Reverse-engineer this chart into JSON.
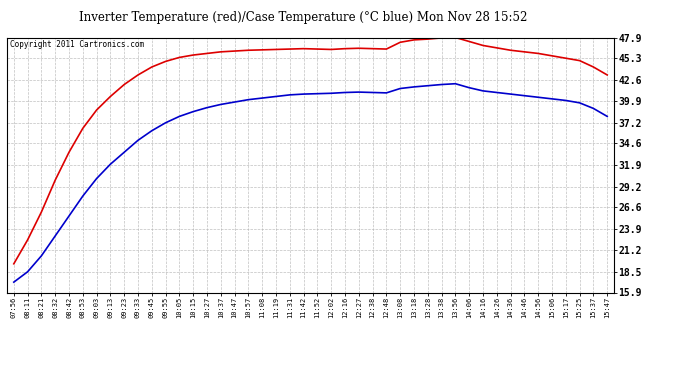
{
  "title": "Inverter Temperature (red)/Case Temperature (°C blue) Mon Nov 28 15:52",
  "copyright": "Copyright 2011 Cartronics.com",
  "background_color": "#ffffff",
  "plot_bg_color": "#ffffff",
  "grid_color": "#b0b0b0",
  "x_labels": [
    "07:56",
    "08:11",
    "08:21",
    "08:32",
    "08:42",
    "08:53",
    "09:03",
    "09:13",
    "09:23",
    "09:33",
    "09:45",
    "09:55",
    "10:05",
    "10:15",
    "10:27",
    "10:37",
    "10:47",
    "10:57",
    "11:08",
    "11:19",
    "11:31",
    "11:42",
    "11:52",
    "12:02",
    "12:16",
    "12:27",
    "12:38",
    "12:48",
    "13:08",
    "13:18",
    "13:28",
    "13:38",
    "13:56",
    "14:06",
    "14:16",
    "14:26",
    "14:36",
    "14:46",
    "14:56",
    "15:06",
    "15:17",
    "15:25",
    "15:37",
    "15:47"
  ],
  "y_ticks": [
    15.9,
    18.5,
    21.2,
    23.9,
    26.6,
    29.2,
    31.9,
    34.6,
    37.2,
    39.9,
    42.6,
    45.3,
    47.9
  ],
  "y_tick_labels": [
    "15.9",
    "18.5",
    "21.2",
    "23.9",
    "26.6",
    "29.2",
    "31.9",
    "34.6",
    "37.2",
    "39.9",
    "42.6",
    "45.3",
    "47.9"
  ],
  "ylim": [
    15.9,
    47.9
  ],
  "red_series": [
    19.5,
    22.5,
    26.0,
    30.0,
    33.5,
    36.5,
    38.8,
    40.5,
    42.0,
    43.2,
    44.2,
    44.9,
    45.4,
    45.7,
    45.9,
    46.1,
    46.2,
    46.3,
    46.35,
    46.4,
    46.45,
    46.5,
    46.45,
    46.4,
    46.5,
    46.55,
    46.5,
    46.45,
    47.3,
    47.6,
    47.7,
    47.85,
    47.9,
    47.4,
    46.9,
    46.6,
    46.3,
    46.1,
    45.9,
    45.6,
    45.3,
    45.0,
    44.2,
    43.2
  ],
  "blue_series": [
    17.2,
    18.5,
    20.5,
    23.0,
    25.5,
    28.0,
    30.2,
    32.0,
    33.5,
    35.0,
    36.2,
    37.2,
    38.0,
    38.6,
    39.1,
    39.5,
    39.8,
    40.1,
    40.3,
    40.5,
    40.7,
    40.8,
    40.85,
    40.9,
    41.0,
    41.05,
    41.0,
    40.95,
    41.5,
    41.7,
    41.85,
    42.0,
    42.1,
    41.6,
    41.2,
    41.0,
    40.8,
    40.6,
    40.4,
    40.2,
    40.0,
    39.7,
    39.0,
    38.0
  ],
  "red_color": "#dd0000",
  "blue_color": "#0000cc",
  "line_width": 1.2
}
